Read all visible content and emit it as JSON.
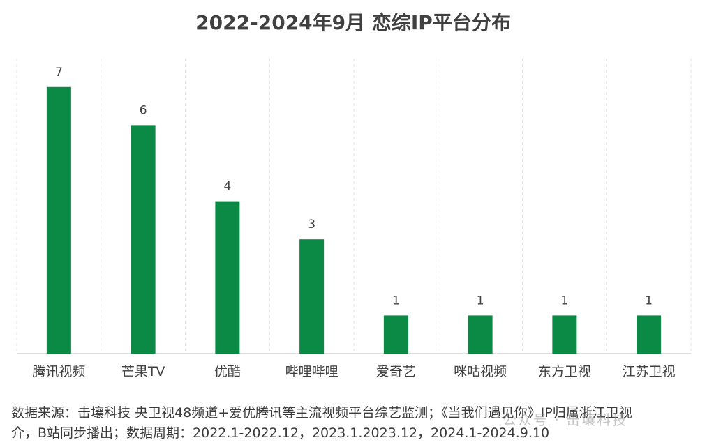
{
  "chart_data": {
    "type": "bar",
    "title": "2022-2024年9月 恋综IP平台分布",
    "categories": [
      "腾讯视频",
      "芒果TV",
      "优酷",
      "哔哩哔哩",
      "爱奇艺",
      "咪咕视频",
      "东方卫视",
      "江苏卫视"
    ],
    "values": [
      7,
      6,
      4,
      3,
      1,
      1,
      1,
      1
    ],
    "ylim": [
      0,
      7.6
    ],
    "xlabel": "",
    "ylabel": "",
    "grid": "vertical-dashed",
    "legend": "none",
    "bar_color": "#0b8a45"
  },
  "footnote": {
    "line1": "数据来源：击壤科技  央卫视48频道+爱优腾讯等主流视频平台综艺监测；《当我们遇见你》IP归属浙江卫视",
    "line2": "介，B站同步播出；数据周期：2022.1-2022.12，2023.1.2023.12，2024.1-2024.9.10"
  },
  "watermark": "公众号 · 击壤科技"
}
